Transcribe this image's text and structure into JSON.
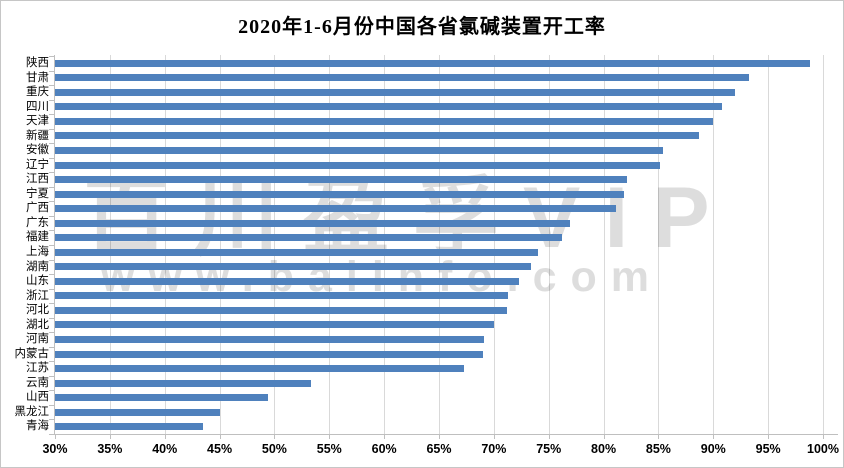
{
  "watermark": {
    "line1": "百川盈孚VIP",
    "line2": "www.baiinfo.com"
  },
  "chart_data": {
    "type": "bar",
    "orientation": "horizontal",
    "title": "2020年1-6月份中国各省氯碱装置开工率",
    "categories": [
      "陕西",
      "甘肃",
      "重庆",
      "四川",
      "天津",
      "新疆",
      "安徽",
      "辽宁",
      "江西",
      "宁夏",
      "广西",
      "广东",
      "福建",
      "上海",
      "湖南",
      "山东",
      "浙江",
      "河北",
      "湖北",
      "河南",
      "内蒙古",
      "江苏",
      "云南",
      "山西",
      "黑龙江",
      "青海"
    ],
    "values": [
      98.8,
      93.3,
      92.0,
      90.8,
      90.0,
      88.7,
      85.4,
      85.1,
      82.1,
      81.9,
      81.1,
      76.9,
      76.2,
      74.0,
      73.4,
      72.3,
      71.3,
      71.2,
      70.0,
      69.1,
      69.0,
      67.3,
      53.3,
      49.4,
      45.0,
      43.5
    ],
    "unit": "%",
    "xlim": [
      30,
      100
    ],
    "x_tick_step": 5,
    "x_tick_labels": [
      "30%",
      "35%",
      "40%",
      "45%",
      "50%",
      "55%",
      "60%",
      "65%",
      "70%",
      "75%",
      "80%",
      "85%",
      "90%",
      "95%",
      "100%"
    ],
    "grid": true,
    "legend": false,
    "bar_color": "#4f81bd",
    "gridline_color": "#d9d9d9",
    "axis_line_color": "#bfbfbf"
  }
}
